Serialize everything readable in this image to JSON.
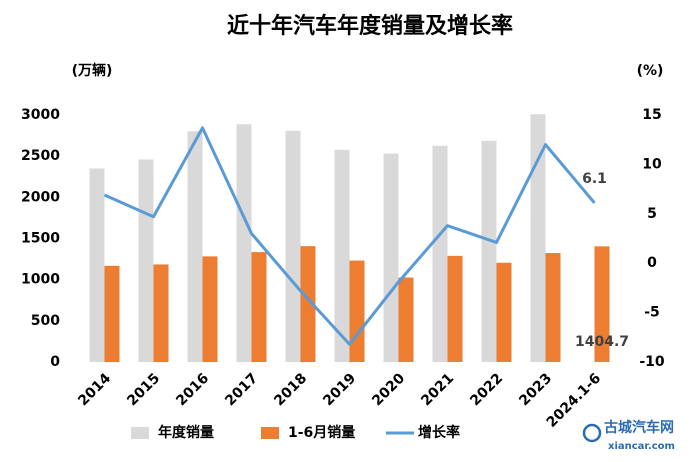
{
  "chart_data": {
    "type": "bar-line",
    "title": "近十年汽车年度销量及增长率",
    "y_label": "(万辆)",
    "y2_label": "(%)",
    "categories": [
      "2014",
      "2015",
      "2016",
      "2017",
      "2018",
      "2019",
      "2020",
      "2021",
      "2022",
      "2023",
      "2024.1-6"
    ],
    "series": [
      {
        "name": "年度销量",
        "type": "bar",
        "color": "#d9d9d9",
        "values": [
          2350,
          2460,
          2803,
          2888,
          2808,
          2577,
          2531,
          2627,
          2686,
          3009,
          null
        ]
      },
      {
        "name": "1-6月销量",
        "type": "bar",
        "color": "#ed7d31",
        "values": [
          1168,
          1185,
          1283,
          1335,
          1407,
          1232,
          1026,
          1289,
          1206,
          1324,
          1404.7
        ],
        "value_labels": [
          null,
          null,
          null,
          null,
          null,
          null,
          null,
          null,
          null,
          null,
          "1404.7"
        ]
      },
      {
        "name": "增长率",
        "type": "line",
        "axis": "y2",
        "color": "#5b9bd5",
        "values": [
          6.9,
          4.7,
          13.7,
          3.0,
          -2.8,
          -8.2,
          -1.9,
          3.8,
          2.1,
          12.0,
          6.1
        ],
        "value_labels": [
          null,
          null,
          null,
          null,
          null,
          null,
          null,
          null,
          null,
          null,
          "6.1"
        ]
      }
    ],
    "ylim": [
      0,
      3000
    ],
    "yticks": [
      0,
      500,
      1000,
      1500,
      2000,
      2500,
      3000
    ],
    "y2lim": [
      -10,
      15
    ],
    "y2ticks": [
      -10,
      -5,
      0,
      5,
      10,
      15
    ],
    "grid": false,
    "legend": "bottom",
    "logo_text": [
      "古城汽车网",
      "xiancar.com"
    ]
  }
}
